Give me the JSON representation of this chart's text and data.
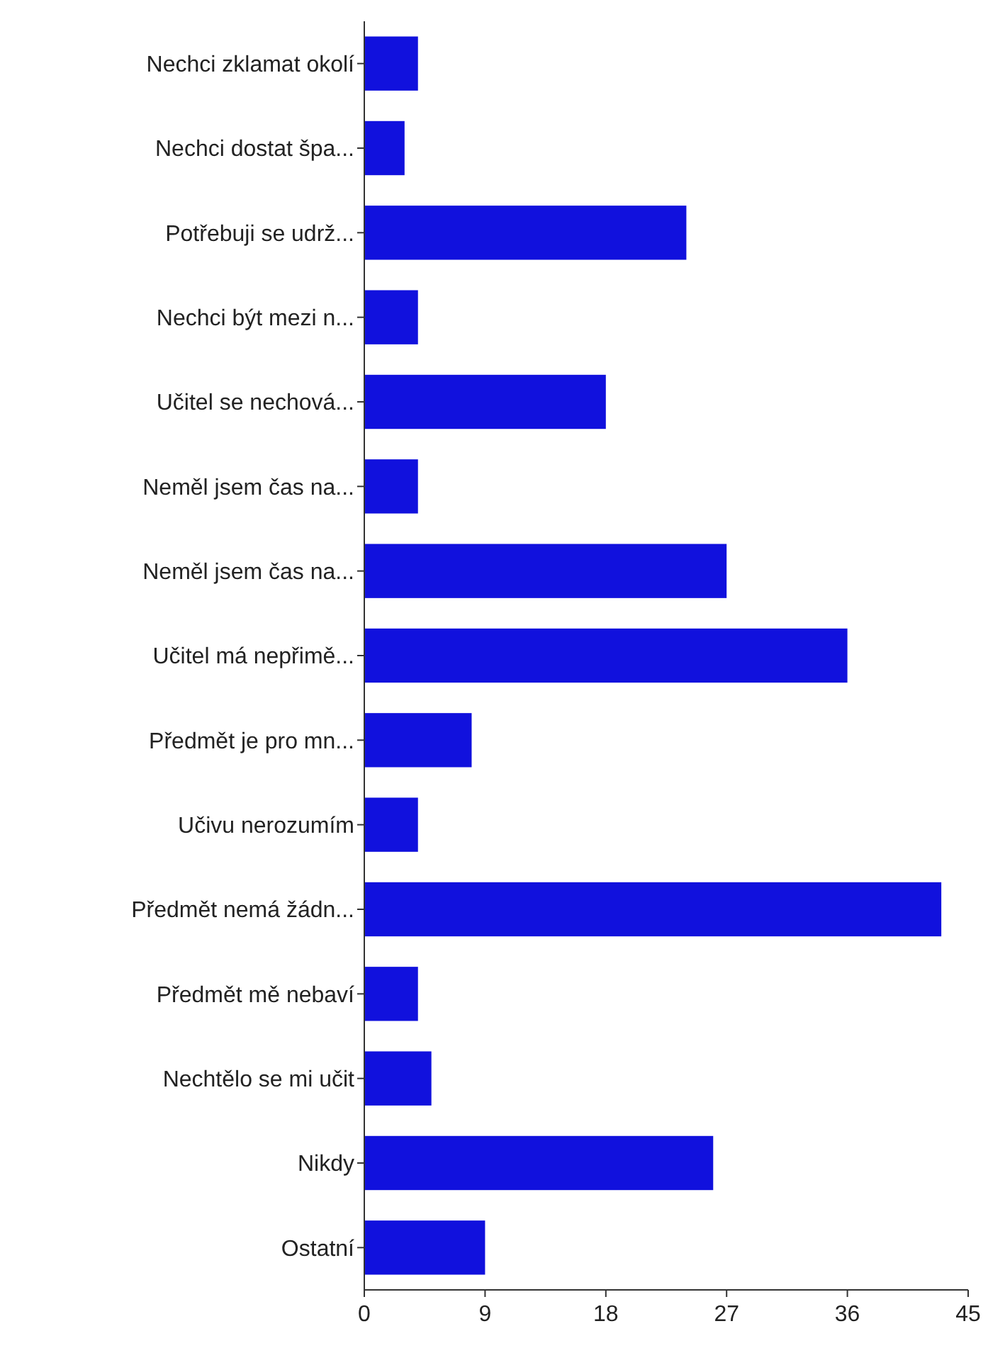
{
  "chart_data": {
    "type": "bar",
    "orientation": "horizontal",
    "categories": [
      "Nechci zklamat okolí",
      "Nechci dostat špa...",
      "Potřebuji se udrž...",
      "Nechci být mezi n...",
      "Učitel se nechová...",
      "Neměl jsem čas na...",
      "Neměl jsem čas na...",
      "Učitel má nepřimě...",
      "Předmět je pro mn...",
      "Učivu nerozumím",
      "Předmět nemá žádn...",
      "Předmět mě nebaví",
      "Nechtělo se mi učit",
      "Nikdy",
      "Ostatní"
    ],
    "values": [
      4,
      3,
      24,
      4,
      18,
      4,
      27,
      36,
      8,
      4,
      43,
      4,
      5,
      26,
      9
    ],
    "color": "#1111dd",
    "xlim": [
      0,
      45
    ],
    "xticks": [
      0,
      9,
      18,
      27,
      36,
      45
    ],
    "grid": false
  }
}
